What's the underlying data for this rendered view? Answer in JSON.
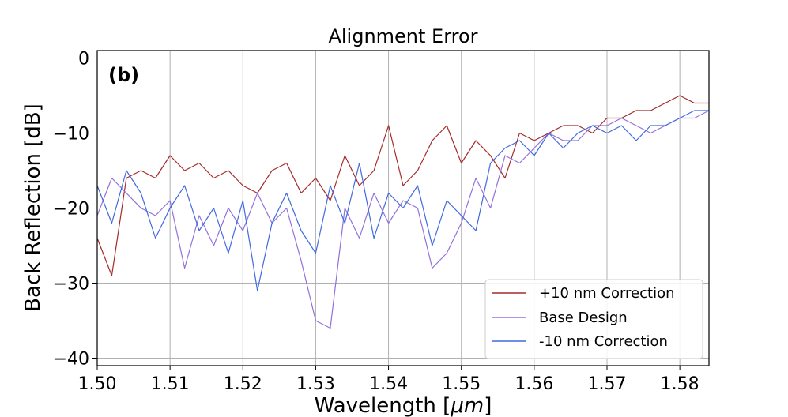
{
  "chart_data": {
    "type": "line",
    "title": "Alignment Error",
    "panel_label": "(b)",
    "xlabel": "Wavelength [μm]",
    "ylabel": "Back Reflection [dB]",
    "xlim": [
      1.5,
      1.584
    ],
    "ylim": [
      -41,
      1
    ],
    "xticks": [
      1.5,
      1.51,
      1.52,
      1.53,
      1.54,
      1.55,
      1.56,
      1.57,
      1.58
    ],
    "xtick_labels": [
      "1.50",
      "1.51",
      "1.52",
      "1.53",
      "1.54",
      "1.55",
      "1.56",
      "1.57",
      "1.58"
    ],
    "yticks": [
      0,
      -10,
      -20,
      -30,
      -40
    ],
    "ytick_labels": [
      "0",
      "−10",
      "−20",
      "−30",
      "−40"
    ],
    "grid": true,
    "legend_position": "bottom-right",
    "x": [
      1.5,
      1.502,
      1.504,
      1.506,
      1.508,
      1.51,
      1.512,
      1.514,
      1.516,
      1.518,
      1.52,
      1.522,
      1.524,
      1.526,
      1.528,
      1.53,
      1.532,
      1.534,
      1.536,
      1.538,
      1.54,
      1.542,
      1.544,
      1.546,
      1.548,
      1.55,
      1.552,
      1.554,
      1.556,
      1.558,
      1.56,
      1.562,
      1.564,
      1.566,
      1.568,
      1.57,
      1.572,
      1.574,
      1.576,
      1.578,
      1.58,
      1.582,
      1.584
    ],
    "series": [
      {
        "name": "+10 nm Correction",
        "color": "#a52a2a",
        "values": [
          -24,
          -29,
          -16,
          -15,
          -16,
          -13,
          -15,
          -14,
          -16,
          -15,
          -17,
          -18,
          -15,
          -14,
          -18,
          -16,
          -19,
          -13,
          -17,
          -15,
          -9,
          -17,
          -15,
          -11,
          -9,
          -14,
          -11,
          -13,
          -16,
          -10,
          -11,
          -10,
          -9,
          -9,
          -10,
          -8,
          -8,
          -7,
          -7,
          -6,
          -5,
          -6,
          -6
        ]
      },
      {
        "name": "Base Design",
        "color": "#9370db",
        "values": [
          -21,
          -16,
          -18,
          -20,
          -21,
          -19,
          -28,
          -21,
          -25,
          -20,
          -23,
          -18,
          -22,
          -20,
          -27,
          -35,
          -36,
          -20,
          -24,
          -18,
          -22,
          -19,
          -20,
          -28,
          -26,
          -22,
          -16,
          -20,
          -13,
          -14,
          -12,
          -10,
          -11,
          -11,
          -9,
          -9,
          -8,
          -9,
          -10,
          -9,
          -8,
          -8,
          -7
        ]
      },
      {
        "name": "-10 nm Correction",
        "color": "#4169e1",
        "values": [
          -17,
          -22,
          -15,
          -18,
          -24,
          -20,
          -17,
          -23,
          -20,
          -26,
          -19,
          -31,
          -22,
          -18,
          -23,
          -26,
          -17,
          -22,
          -14,
          -24,
          -18,
          -20,
          -17,
          -25,
          -19,
          -21,
          -23,
          -14,
          -12,
          -11,
          -13,
          -10,
          -12,
          -10,
          -9,
          -10,
          -9,
          -11,
          -9,
          -9,
          -8,
          -7,
          -7
        ]
      }
    ]
  }
}
